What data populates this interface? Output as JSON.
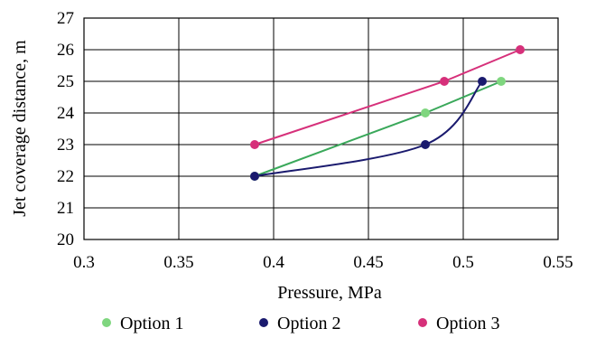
{
  "chart_data": {
    "type": "line",
    "title": "",
    "xlabel": "Pressure, MPa",
    "ylabel": "Jet coverage distance, m",
    "xlim": [
      0.3,
      0.55
    ],
    "ylim": [
      20,
      27
    ],
    "x_ticks": [
      "0.3",
      "0.35",
      "0.4",
      "0.45",
      "0.5",
      "0.55"
    ],
    "y_ticks": [
      "20",
      "21",
      "22",
      "23",
      "24",
      "25",
      "26",
      "27"
    ],
    "grid": true,
    "legend_position": "bottom",
    "series": [
      {
        "name": "Option 1",
        "color": "#3aa85a",
        "marker_color": "#7fd67f",
        "curve": "straight",
        "points": [
          [
            0.39,
            22
          ],
          [
            0.48,
            24
          ],
          [
            0.52,
            25
          ]
        ]
      },
      {
        "name": "Option 2",
        "color": "#1a1a6e",
        "marker_color": "#1a1a6e",
        "curve": "smooth",
        "points": [
          [
            0.39,
            22
          ],
          [
            0.48,
            23
          ],
          [
            0.51,
            25
          ]
        ]
      },
      {
        "name": "Option 3",
        "color": "#d6307a",
        "marker_color": "#d6307a",
        "curve": "straight",
        "points": [
          [
            0.39,
            23
          ],
          [
            0.49,
            25
          ],
          [
            0.53,
            26
          ]
        ]
      }
    ]
  }
}
